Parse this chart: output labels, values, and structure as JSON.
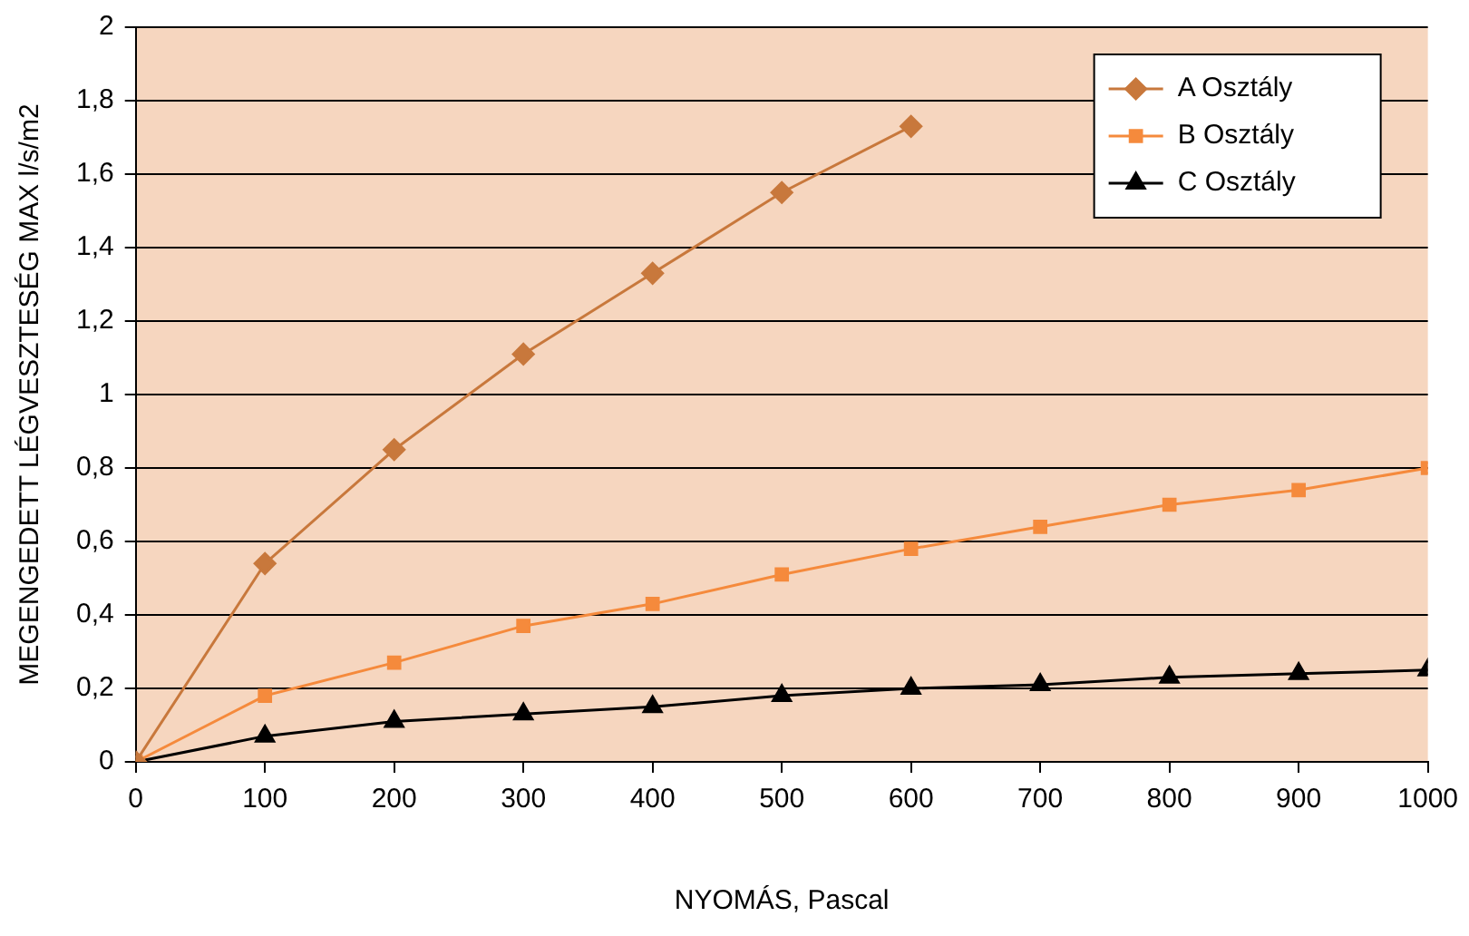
{
  "chart_data": {
    "type": "line",
    "xlabel": "NYOMÁS, Pascal",
    "ylabel": "MEGENGEDETT LÉGVESZTESÉG MAX l/s/m2",
    "x": [
      0,
      100,
      200,
      300,
      400,
      500,
      600,
      700,
      800,
      900,
      1000
    ],
    "series": [
      {
        "name": "A Osztály",
        "color": "#c8783c",
        "marker": "diamond",
        "values": [
          0,
          0.54,
          0.85,
          1.11,
          1.33,
          1.55,
          1.73,
          null,
          null,
          null,
          null
        ]
      },
      {
        "name": "B Osztály",
        "color": "#f58a3c",
        "marker": "square",
        "values": [
          0,
          0.18,
          0.27,
          0.37,
          0.43,
          0.51,
          0.58,
          0.64,
          0.7,
          0.74,
          0.8
        ]
      },
      {
        "name": "C Osztály",
        "color": "#000000",
        "marker": "triangle",
        "values": [
          0,
          0.07,
          0.11,
          0.13,
          0.15,
          0.18,
          0.2,
          0.21,
          0.23,
          0.24,
          0.25
        ]
      }
    ],
    "xlim": [
      0,
      1000
    ],
    "xticks": [
      0,
      100,
      200,
      300,
      400,
      500,
      600,
      700,
      800,
      900,
      1000
    ],
    "ylim": [
      0,
      2
    ],
    "yticks": [
      0,
      {
        "value": 0.2,
        "label": "0,2"
      },
      {
        "value": 0.4,
        "label": "0,4"
      },
      {
        "value": 0.6,
        "label": "0,6"
      },
      {
        "value": 0.8,
        "label": "0,8"
      },
      1,
      {
        "value": 1.2,
        "label": "1,2"
      },
      {
        "value": 1.4,
        "label": "1,4"
      },
      {
        "value": 1.6,
        "label": "1,6"
      },
      {
        "value": 1.8,
        "label": "1,8"
      },
      2
    ],
    "grid": "y",
    "legend": "top right",
    "line_style": "solid"
  }
}
